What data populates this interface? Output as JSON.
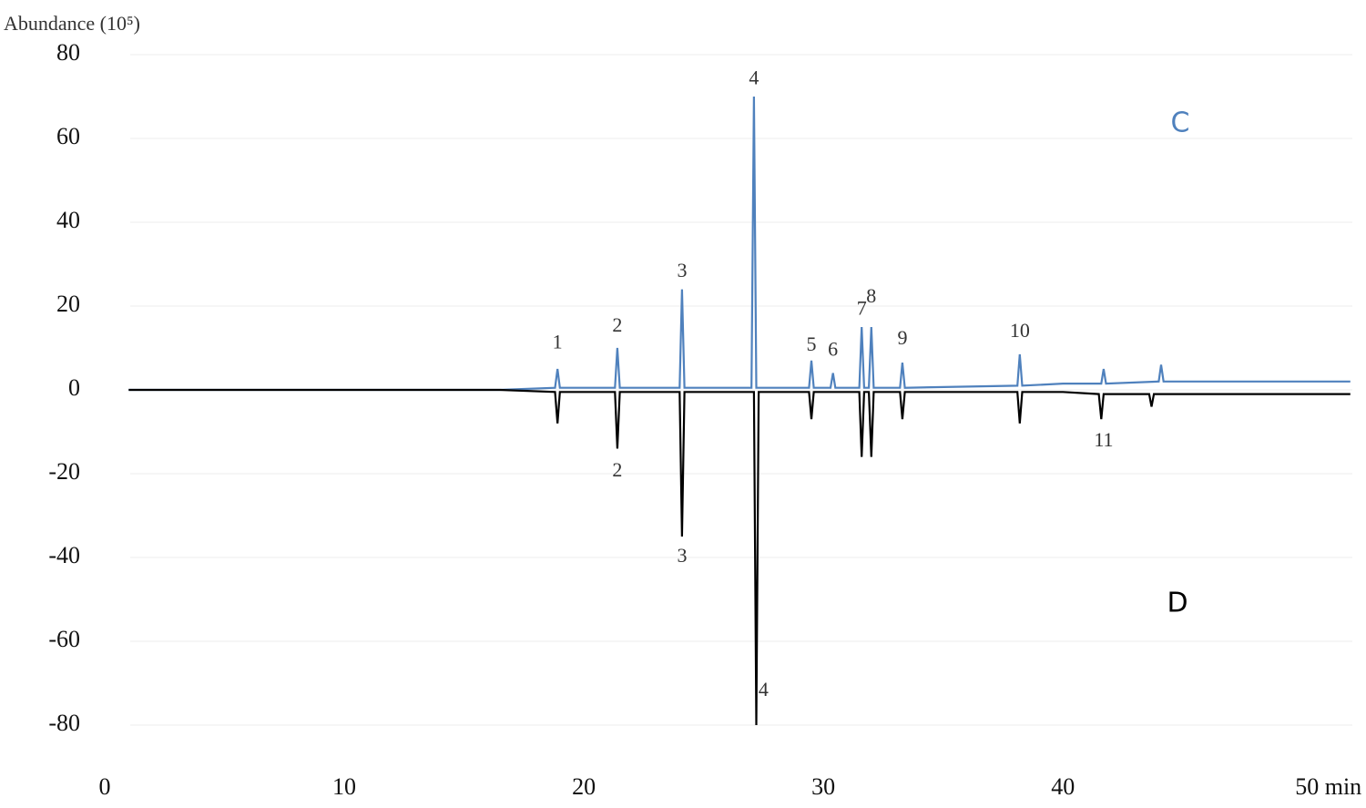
{
  "chart_data": {
    "type": "line",
    "y_label": "Abundance (10⁵)",
    "xlim": [
      0,
      52.5
    ],
    "ylim": [
      -80,
      80
    ],
    "xticks": [
      0,
      10,
      20,
      30,
      40,
      {
        "value": 50,
        "label": "50 min"
      }
    ],
    "yticks": [
      80,
      60,
      40,
      20,
      0,
      -20,
      -40,
      -60,
      -80
    ],
    "grid": true,
    "series": [
      {
        "name": "C",
        "color": "#4f81bd",
        "x": [
          1,
          5,
          10,
          14,
          16.5,
          18.8,
          18.9,
          19.0,
          21.3,
          21.4,
          21.5,
          24.0,
          24.1,
          24.2,
          27.0,
          27.1,
          27.2,
          29.4,
          29.5,
          29.6,
          30.3,
          30.4,
          30.5,
          31.5,
          31.6,
          31.7,
          31.9,
          32.0,
          32.1,
          33.2,
          33.3,
          33.4,
          38.1,
          38.2,
          38.3,
          40,
          41.6,
          41.7,
          41.8,
          44,
          44.1,
          44.2,
          48,
          52
        ],
        "values": [
          0,
          0,
          0,
          0,
          0,
          0.5,
          5,
          0.5,
          0.5,
          10,
          0.5,
          0.5,
          24,
          0.5,
          0.5,
          70,
          0.5,
          0.5,
          7,
          0.5,
          0.5,
          4,
          0.5,
          0.5,
          15,
          0.5,
          0.5,
          15,
          0.5,
          0.5,
          6.5,
          0.5,
          1,
          8.5,
          1,
          1.5,
          1.5,
          5,
          1.5,
          2,
          6,
          2,
          2,
          2
        ]
      },
      {
        "name": "D",
        "color": "#000000",
        "x": [
          1,
          5,
          10,
          14,
          16.5,
          18.8,
          18.9,
          19.0,
          21.3,
          21.4,
          21.5,
          24.0,
          24.1,
          24.2,
          27.1,
          27.2,
          27.3,
          29.4,
          29.5,
          29.6,
          31.5,
          31.6,
          31.7,
          31.9,
          32.0,
          32.1,
          33.2,
          33.3,
          33.4,
          38.1,
          38.2,
          38.3,
          40,
          41.5,
          41.6,
          41.7,
          43.6,
          43.7,
          43.8,
          48,
          52
        ],
        "values": [
          0,
          0,
          0,
          0,
          0,
          -0.5,
          -8,
          -0.5,
          -0.5,
          -14,
          -0.5,
          -0.5,
          -35,
          -0.5,
          -0.5,
          -80,
          -0.5,
          -0.5,
          -7,
          -0.5,
          -0.5,
          -16,
          -0.5,
          -0.5,
          -16,
          -0.5,
          -0.5,
          -7,
          -0.5,
          -0.5,
          -8,
          -0.5,
          -0.5,
          -1,
          -7,
          -1,
          -1,
          -4,
          -1,
          -1,
          -1
        ]
      }
    ],
    "annotations": [
      {
        "text": "1",
        "x": 18.9,
        "y": 11
      },
      {
        "text": "2",
        "x": 21.4,
        "y": 15
      },
      {
        "text": "3",
        "x": 24.1,
        "y": 28
      },
      {
        "text": "4",
        "x": 27.1,
        "y": 74
      },
      {
        "text": "5",
        "x": 29.5,
        "y": 10.4
      },
      {
        "text": "6",
        "x": 30.4,
        "y": 9.3
      },
      {
        "text": "7",
        "x": 31.6,
        "y": 19
      },
      {
        "text": "8",
        "x": 32.0,
        "y": 22
      },
      {
        "text": "9",
        "x": 33.3,
        "y": 12
      },
      {
        "text": "10",
        "x": 38.2,
        "y": 13.7
      },
      {
        "text": "2",
        "x": 21.4,
        "y": -19.6
      },
      {
        "text": "3",
        "x": 24.1,
        "y": -40
      },
      {
        "text": "4",
        "x": 27.5,
        "y": -72
      },
      {
        "text": "11",
        "x": 41.7,
        "y": -12.4
      }
    ]
  }
}
